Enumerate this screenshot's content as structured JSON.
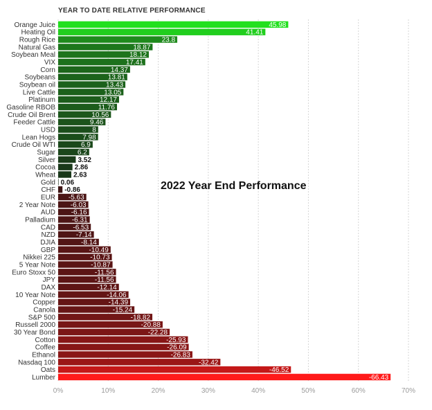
{
  "chart_data": {
    "type": "bar",
    "orientation": "horizontal",
    "title": "YEAR TO DATE RELATIVE PERFORMANCE",
    "annotation": "2022 Year End Performance",
    "categories": [
      "Orange Juice",
      "Heating Oil",
      "Rough Rice",
      "Natural Gas",
      "Soybean Meal",
      "VIX",
      "Corn",
      "Soybeans",
      "Soybean oil",
      "Live Cattle",
      "Platinum",
      "Gasoline RBOB",
      "Crude Oil Brent",
      "Feeder Cattle",
      "USD",
      "Lean Hogs",
      "Crude Oil WTI",
      "Sugar",
      "Silver",
      "Cocoa",
      "Wheat",
      "Gold",
      "CHF",
      "EUR",
      "2 Year Note",
      "AUD",
      "Palladium",
      "CAD",
      "NZD",
      "DJIA",
      "GBP",
      "Nikkei 225",
      "5 Year Note",
      "Euro Stoxx 50",
      "JPY",
      "DAX",
      "10 Year Note",
      "Copper",
      "Canola",
      "S&P 500",
      "Russell 2000",
      "30 Year Bond",
      "Cotton",
      "Coffee",
      "Ethanol",
      "Nasdaq 100",
      "Oats",
      "Lumber"
    ],
    "values": [
      45.98,
      41.41,
      23.8,
      18.87,
      18.12,
      17.41,
      14.37,
      13.81,
      13.43,
      13.05,
      12.17,
      11.76,
      10.56,
      9.46,
      8,
      7.98,
      6.9,
      6.2,
      3.52,
      2.86,
      2.63,
      0.06,
      -0.86,
      -5.63,
      -6.03,
      -6.16,
      -6.31,
      -6.53,
      -7.14,
      -8.14,
      -10.49,
      -10.73,
      -10.87,
      -11.56,
      -11.56,
      -12.14,
      -14.06,
      -14.39,
      -15.24,
      -18.82,
      -20.88,
      -22.28,
      -25.93,
      -26.09,
      -26.83,
      -32.42,
      -46.52,
      -66.43
    ],
    "value_labels": [
      "45.98",
      "41.41",
      "23.8",
      "18.87",
      "18.12",
      "17.41",
      "14.37",
      "13.81",
      "13.43",
      "13.05",
      "12.17",
      "11.76",
      "10.56",
      "9.46",
      "8",
      "7.98",
      "6.9",
      "6.2",
      "3.52",
      "2.86",
      "2.63",
      "0.06",
      "-0.86",
      "-5.63",
      "-6.03",
      "-6.16",
      "-6.31",
      "-6.53",
      "-7.14",
      "-8.14",
      "-10.49",
      "-10.73",
      "-10.87",
      "-11.56",
      "-11.56",
      "-12.14",
      "-14.06",
      "-14.39",
      "-15.24",
      "-18.82",
      "-20.88",
      "-22.28",
      "-25.93",
      "-26.09",
      "-26.83",
      "-32.42",
      "-46.52",
      "-66.43"
    ],
    "x_ticks": [
      "0%",
      "10%",
      "20%",
      "30%",
      "40%",
      "50%",
      "60%",
      "70%"
    ],
    "xlim": [
      0,
      70
    ],
    "bar_length": "absolute value",
    "grid": "vertical dotted",
    "colors": {
      "positive_high": "#22e01e",
      "positive_low": "#1a2e1a",
      "negative_low": "#3a1414",
      "negative_high": "#ff1a1a"
    }
  }
}
